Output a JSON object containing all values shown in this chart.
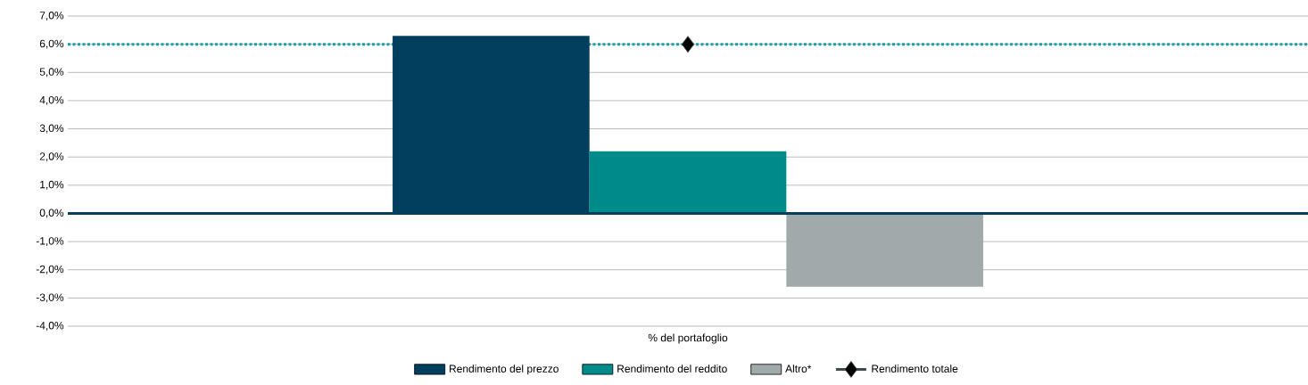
{
  "chart_data": {
    "type": "bar",
    "categories": [
      "% del portafoglio"
    ],
    "series": [
      {
        "name": "Rendimento del prezzo",
        "color": "#023f5f",
        "values": [
          6.3
        ]
      },
      {
        "name": "Rendimento del reddito",
        "color": "#008b8b",
        "values": [
          2.2
        ]
      },
      {
        "name": "Altro*",
        "color": "#a0aaab",
        "values": [
          -2.6
        ]
      },
      {
        "name": "Rendimento totale",
        "type": "line",
        "color": "#3f4b4f",
        "marker": "diamond",
        "values": [
          6.0
        ]
      }
    ],
    "ylim": [
      -4,
      7
    ],
    "yticks": [
      {
        "value": -4,
        "label": "-4,0%"
      },
      {
        "value": -3,
        "label": "-3,0%"
      },
      {
        "value": -2,
        "label": "-2,0%"
      },
      {
        "value": -1,
        "label": "-1,0%"
      },
      {
        "value": 0,
        "label": "0,0%"
      },
      {
        "value": 1,
        "label": "1,0%"
      },
      {
        "value": 2,
        "label": "2,0%"
      },
      {
        "value": 3,
        "label": "3,0%"
      },
      {
        "value": 4,
        "label": "4,0%"
      },
      {
        "value": 5,
        "label": "5,0%"
      },
      {
        "value": 6,
        "label": "6,0%"
      },
      {
        "value": 7,
        "label": "7,0%"
      }
    ],
    "grid": "y",
    "legend": "bottom",
    "ref_lines": [
      {
        "axis": "y",
        "value": 6.0,
        "color": "#1a9fa5",
        "line_style": "dotted"
      }
    ]
  }
}
